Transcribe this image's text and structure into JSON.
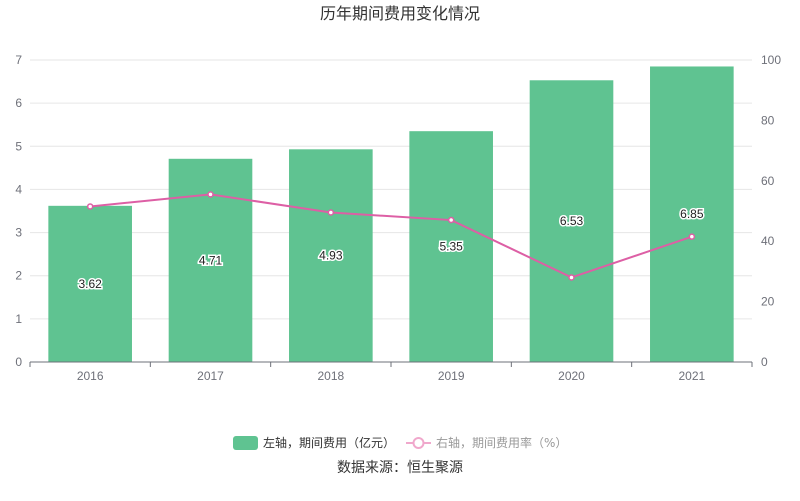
{
  "chart_data": {
    "type": "bar",
    "title": "历年期间费用变化情况",
    "categories": [
      "2016",
      "2017",
      "2018",
      "2019",
      "2020",
      "2021"
    ],
    "series": [
      {
        "name": "左轴，期间费用（亿元）",
        "type": "bar",
        "axis": "left",
        "values": [
          3.62,
          4.71,
          4.93,
          5.35,
          6.53,
          6.85
        ],
        "labels": [
          "3.62",
          "4.71",
          "4.93",
          "5.35",
          "6.53",
          "6.85"
        ],
        "color": "#5fc391"
      },
      {
        "name": "右轴，期间费用率（%）",
        "type": "line",
        "axis": "right",
        "values": [
          51.5,
          55.5,
          49.5,
          47.0,
          28.0,
          41.5
        ],
        "color": "#dd5fa5"
      }
    ],
    "y_left": {
      "min": 0,
      "max": 7,
      "ticks": [
        "0",
        "1",
        "2",
        "3",
        "4",
        "5",
        "6",
        "7"
      ]
    },
    "y_right": {
      "min": 0,
      "max": 100,
      "ticks": [
        "0",
        "20",
        "40",
        "60",
        "80",
        "100"
      ]
    },
    "grid": true,
    "legend_position": "bottom"
  },
  "source": "数据来源：恒生聚源"
}
